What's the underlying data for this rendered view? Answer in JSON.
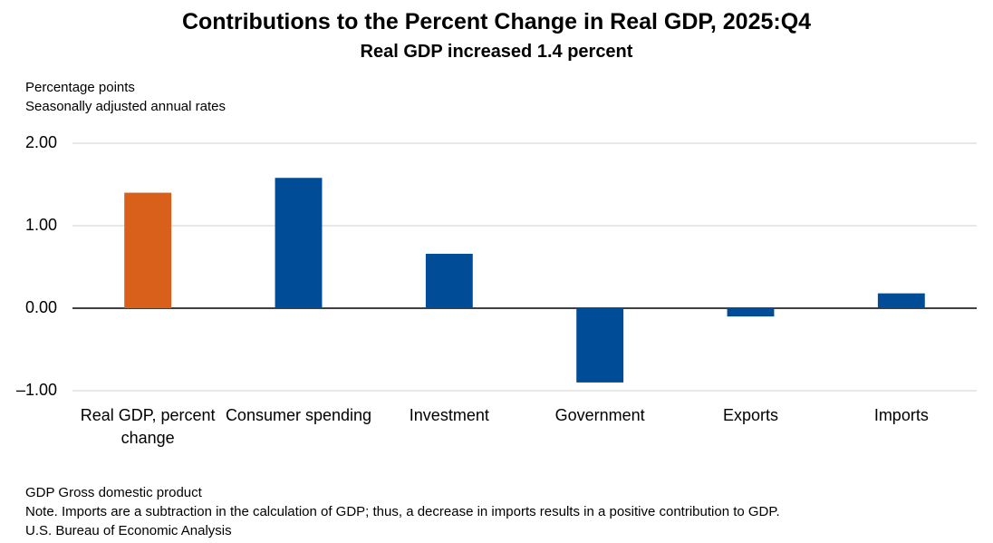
{
  "chart_data": {
    "type": "bar",
    "title": "Contributions to the Percent Change in Real GDP, 2025:Q4",
    "subtitle": "Real GDP increased 1.4 percent",
    "ylabel": [
      "Percentage points",
      "Seasonally adjusted annual rates"
    ],
    "categories": [
      "Real GDP, percent change",
      "Consumer spending",
      "Investment",
      "Government",
      "Exports",
      "Imports"
    ],
    "values": [
      1.4,
      1.58,
      0.66,
      -0.9,
      -0.1,
      0.18
    ],
    "colors": [
      "#d9601a",
      "#004c97",
      "#004c97",
      "#004c97",
      "#004c97",
      "#004c97"
    ],
    "ylim": [
      -1,
      2
    ],
    "yticks": [
      {
        "value": -1,
        "label": "–1.00"
      },
      {
        "value": 0,
        "label": "0.00"
      },
      {
        "value": 1,
        "label": "1.00"
      },
      {
        "value": 2,
        "label": "2.00"
      }
    ],
    "grid": true,
    "notes": [
      "GDP Gross domestic product",
      "Note. Imports are a subtraction in the calculation of GDP; thus, a decrease in imports results in a positive contribution to GDP.",
      "U.S. Bureau of Economic Analysis"
    ]
  }
}
